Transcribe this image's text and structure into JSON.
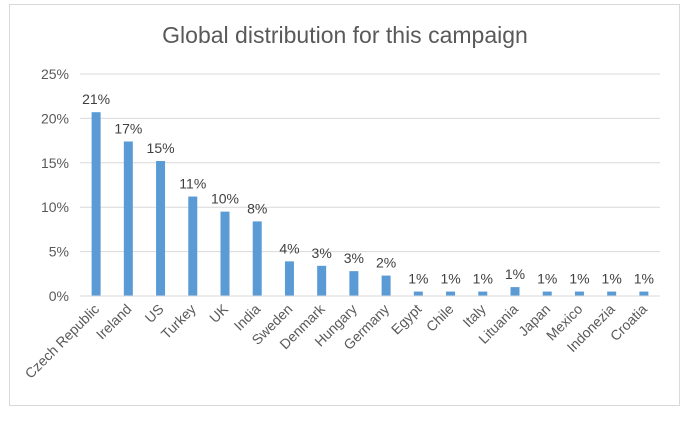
{
  "chart_data": {
    "type": "bar",
    "title": "Global distribution for this campaign",
    "xlabel": "",
    "ylabel": "",
    "ylim": [
      0,
      25
    ],
    "yticks": [
      "0%",
      "5%",
      "10%",
      "15%",
      "20%",
      "25%"
    ],
    "grid": true,
    "legend": "none",
    "bar_color": "#5b9bd5",
    "categories": [
      "Czech Republic",
      "Ireland",
      "US",
      "Turkey",
      "UK",
      "India",
      "Sweden",
      "Denmark",
      "Hungary",
      "Germany",
      "Egypt",
      "Chile",
      "Italy",
      "Lituania",
      "Japan",
      "Mexico",
      "Indonezia",
      "Croatia"
    ],
    "values": [
      20.7,
      17.4,
      15.2,
      11.2,
      9.5,
      8.4,
      3.9,
      3.4,
      2.8,
      2.3,
      0.5,
      0.5,
      0.5,
      1.0,
      0.5,
      0.5,
      0.5,
      0.5
    ],
    "data_labels": [
      "21%",
      "17%",
      "15%",
      "11%",
      "10%",
      "8%",
      "4%",
      "3%",
      "3%",
      "2%",
      "1%",
      "1%",
      "1%",
      "1%",
      "1%",
      "1%",
      "1%",
      "1%"
    ]
  }
}
